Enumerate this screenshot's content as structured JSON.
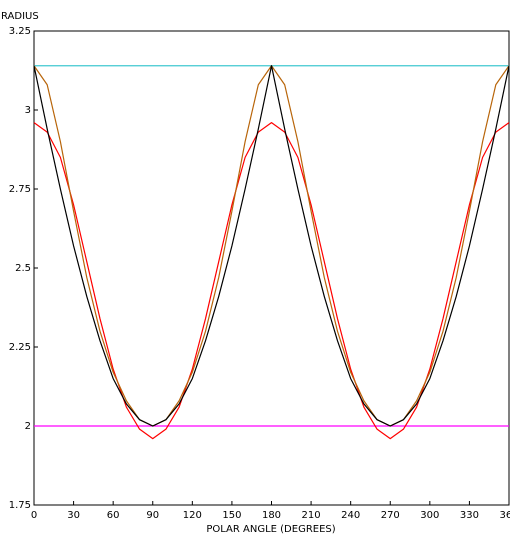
{
  "chart_data": {
    "type": "line",
    "y_label": "RADIUS",
    "x_label": "POLAR ANGLE (DEGREES)",
    "x": [
      0,
      10,
      20,
      30,
      40,
      50,
      60,
      70,
      80,
      90,
      100,
      110,
      120,
      130,
      140,
      150,
      160,
      170,
      180,
      190,
      200,
      210,
      220,
      230,
      240,
      250,
      260,
      270,
      280,
      290,
      300,
      310,
      320,
      330,
      340,
      350,
      360
    ],
    "series": [
      {
        "color": "#40c8d0",
        "values": [
          3.14,
          3.14,
          3.14,
          3.14,
          3.14,
          3.14,
          3.14,
          3.14,
          3.14,
          3.14,
          3.14,
          3.14,
          3.14,
          3.14,
          3.14,
          3.14,
          3.14,
          3.14,
          3.14,
          3.14,
          3.14,
          3.14,
          3.14,
          3.14,
          3.14,
          3.14,
          3.14,
          3.14,
          3.14,
          3.14,
          3.14,
          3.14,
          3.14,
          3.14,
          3.14,
          3.14,
          3.14
        ]
      },
      {
        "color": "#ff00ff",
        "values": [
          2,
          2,
          2,
          2,
          2,
          2,
          2,
          2,
          2,
          2,
          2,
          2,
          2,
          2,
          2,
          2,
          2,
          2,
          2,
          2,
          2,
          2,
          2,
          2,
          2,
          2,
          2,
          2,
          2,
          2,
          2,
          2,
          2,
          2,
          2,
          2,
          2
        ]
      },
      {
        "color": "#ff0000",
        "values": [
          2.96,
          2.93,
          2.85,
          2.7,
          2.52,
          2.34,
          2.18,
          2.06,
          1.99,
          1.96,
          1.99,
          2.06,
          2.18,
          2.34,
          2.52,
          2.7,
          2.85,
          2.93,
          2.96,
          2.93,
          2.85,
          2.7,
          2.52,
          2.34,
          2.18,
          2.06,
          1.99,
          1.96,
          1.99,
          2.06,
          2.18,
          2.34,
          2.52,
          2.7,
          2.85,
          2.93,
          2.96
        ]
      },
      {
        "color": "#b8650a",
        "values": [
          3.14,
          3.08,
          2.9,
          2.68,
          2.47,
          2.3,
          2.17,
          2.08,
          2.02,
          2,
          2.02,
          2.08,
          2.17,
          2.3,
          2.47,
          2.68,
          2.9,
          3.08,
          3.14,
          3.08,
          2.9,
          2.68,
          2.47,
          2.3,
          2.17,
          2.08,
          2.02,
          2,
          2.02,
          2.08,
          2.17,
          2.3,
          2.47,
          2.68,
          2.9,
          3.08,
          3.14
        ]
      },
      {
        "color": "#000000",
        "values": [
          3.14,
          2.94,
          2.75,
          2.57,
          2.41,
          2.27,
          2.15,
          2.07,
          2.02,
          2,
          2.02,
          2.07,
          2.15,
          2.27,
          2.41,
          2.57,
          2.75,
          2.94,
          3.14,
          2.94,
          2.75,
          2.57,
          2.41,
          2.27,
          2.15,
          2.07,
          2.02,
          2,
          2.02,
          2.07,
          2.15,
          2.27,
          2.41,
          2.57,
          2.75,
          2.94,
          3.14
        ]
      }
    ],
    "xlim": [
      0,
      360
    ],
    "xticks": [
      0,
      30,
      60,
      90,
      120,
      150,
      180,
      210,
      240,
      270,
      300,
      330,
      360
    ],
    "ylim": [
      1.75,
      3.25
    ],
    "yticks": [
      1.75,
      2,
      2.25,
      2.5,
      2.75,
      3,
      3.25
    ]
  }
}
